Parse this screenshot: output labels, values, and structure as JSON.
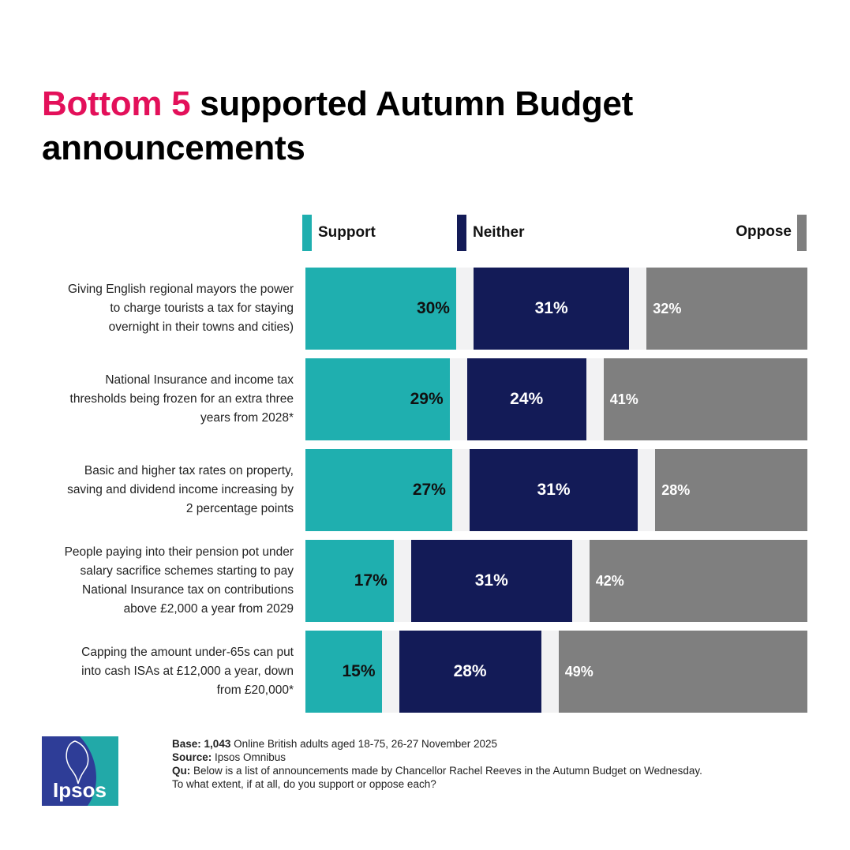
{
  "title": {
    "highlight": "Bottom 5",
    "rest": " supported Autumn Budget announcements"
  },
  "colors": {
    "title_accent": "#e3105a",
    "support": "#1fafaf",
    "neither": "#131b57",
    "oppose": "#7f7f7f",
    "track": "#f2f2f3"
  },
  "legend": {
    "support": "Support",
    "neither": "Neither",
    "oppose": "Oppose"
  },
  "chart_data": {
    "type": "bar",
    "orientation": "horizontal",
    "stacked": true,
    "value_format": "percent",
    "title": "Bottom 5 supported Autumn Budget announcements",
    "categories": [
      "Giving English regional mayors the power to charge tourists a tax for staying overnight in their towns and cities)",
      "National Insurance and income tax thresholds being frozen for an extra three years from 2028*",
      "Basic and higher tax rates on property, saving and dividend income increasing by 2 percentage points",
      "People paying into their pension pot under salary sacrifice schemes starting to pay National Insurance tax on contributions above £2,000 a year from 2029",
      "Capping the amount under-65s can put into cash ISAs at £12,000 a year, down from £20,000*"
    ],
    "series": [
      {
        "name": "Support",
        "values": [
          30,
          29,
          27,
          17,
          15
        ]
      },
      {
        "name": "Neither",
        "values": [
          31,
          24,
          31,
          31,
          28
        ]
      },
      {
        "name": "Oppose",
        "values": [
          32,
          41,
          28,
          42,
          49
        ]
      }
    ],
    "value_labels": [
      [
        "30%",
        "31%",
        "32%"
      ],
      [
        "29%",
        "24%",
        "41%"
      ],
      [
        "27%",
        "31%",
        "28%"
      ],
      [
        "17%",
        "31%",
        "42%"
      ],
      [
        "15%",
        "28%",
        "49%"
      ]
    ],
    "legend_position": "top",
    "xlim": [
      0,
      100
    ],
    "grid": false
  },
  "row_labels": [
    [
      "Giving English regional mayors the power",
      "to charge tourists a tax for staying",
      "overnight in their towns and cities)"
    ],
    [
      "National Insurance and income tax",
      "thresholds being frozen for an extra three",
      "years from 2028*"
    ],
    [
      "Basic and higher tax rates on property,",
      "saving and dividend income increasing by",
      "2 percentage points"
    ],
    [
      "People paying into their pension pot under",
      "salary sacrifice schemes starting to pay",
      "National Insurance tax on contributions",
      "above £2,000 a year from 2029"
    ],
    [
      "Capping the amount under-65s can put",
      "into cash ISAs at £12,000 a year, down",
      "from £20,000*"
    ]
  ],
  "footer": {
    "base_label": "Base:",
    "base_value": "1,043",
    "base_text": " Online British adults aged 18-75, 26-27 November 2025",
    "source_label": "Source:",
    "source_text": " Ipsos Omnibus",
    "question_label": "Qu:",
    "question_text": " Below is a list of announcements made by Chancellor Rachel Reeves in the Autumn Budget on Wednesday.",
    "question_line2": "To what extent, if at all, do you support or oppose each?"
  },
  "logo": {
    "text": "Ipsos",
    "icon": "ipsos-logo-icon"
  }
}
